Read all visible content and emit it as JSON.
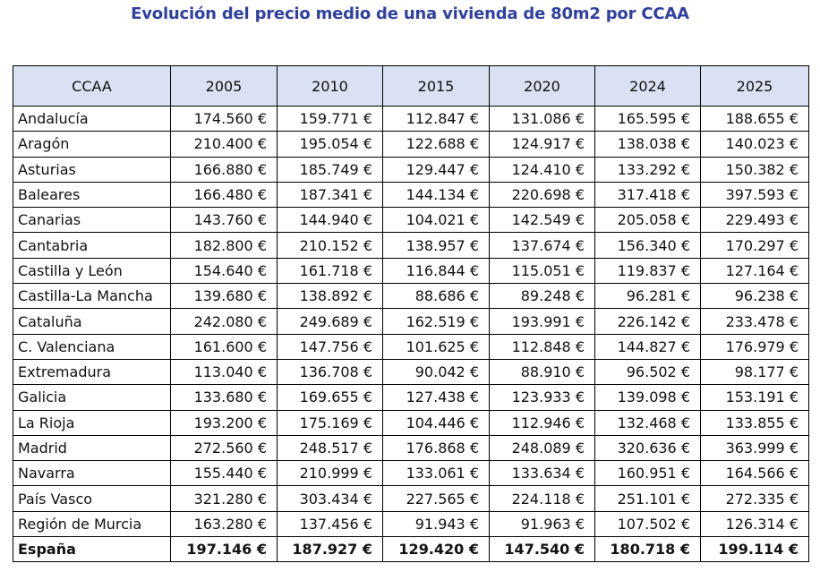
{
  "title": "Evolución del precio medio de una vivienda de 80m2 por CCAA",
  "colors": {
    "title": "#3040A0",
    "header_bg": "#D9E1F2",
    "border": "#000000"
  },
  "table": {
    "headers": [
      "CCAA",
      "2005",
      "2010",
      "2015",
      "2020",
      "2024",
      "2025"
    ],
    "rows": [
      [
        "Andalucía",
        "174.560 €",
        "159.771 €",
        "112.847 €",
        "131.086 €",
        "165.595 €",
        "188.655 €"
      ],
      [
        "Aragón",
        "210.400 €",
        "195.054 €",
        "122.688 €",
        "124.917 €",
        "138.038 €",
        "140.023 €"
      ],
      [
        "Asturias",
        "166.880 €",
        "185.749 €",
        "129.447 €",
        "124.410 €",
        "133.292 €",
        "150.382 €"
      ],
      [
        "Baleares",
        "166.480 €",
        "187.341 €",
        "144.134 €",
        "220.698 €",
        "317.418 €",
        "397.593 €"
      ],
      [
        "Canarias",
        "143.760 €",
        "144.940 €",
        "104.021 €",
        "142.549 €",
        "205.058 €",
        "229.493 €"
      ],
      [
        "Cantabria",
        "182.800 €",
        "210.152 €",
        "138.957 €",
        "137.674 €",
        "156.340 €",
        "170.297 €"
      ],
      [
        "Castilla y León",
        "154.640 €",
        "161.718 €",
        "116.844 €",
        "115.051 €",
        "119.837 €",
        "127.164 €"
      ],
      [
        "Castilla-La Mancha",
        "139.680 €",
        "138.892 €",
        "88.686 €",
        "89.248 €",
        "96.281 €",
        "96.238 €"
      ],
      [
        "Cataluña",
        "242.080 €",
        "249.689 €",
        "162.519 €",
        "193.991 €",
        "226.142 €",
        "233.478 €"
      ],
      [
        "C. Valenciana",
        "161.600 €",
        "147.756 €",
        "101.625 €",
        "112.848 €",
        "144.827 €",
        "176.979 €"
      ],
      [
        "Extremadura",
        "113.040 €",
        "136.708 €",
        "90.042 €",
        "88.910 €",
        "96.502 €",
        "98.177 €"
      ],
      [
        "Galicia",
        "133.680 €",
        "169.655 €",
        "127.438 €",
        "123.933 €",
        "139.098 €",
        "153.191 €"
      ],
      [
        "La Rioja",
        "193.200 €",
        "175.169 €",
        "104.446 €",
        "112.946 €",
        "132.468 €",
        "133.855 €"
      ],
      [
        "Madrid",
        "272.560 €",
        "248.517 €",
        "176.868 €",
        "248.089 €",
        "320.636 €",
        "363.999 €"
      ],
      [
        "Navarra",
        "155.440 €",
        "210.999 €",
        "133.061 €",
        "133.634 €",
        "160.951 €",
        "164.566 €"
      ],
      [
        "País Vasco",
        "321.280 €",
        "303.434 €",
        "227.565 €",
        "224.118 €",
        "251.101 €",
        "272.335 €"
      ],
      [
        "Región de Murcia",
        "163.280 €",
        "137.456 €",
        "91.943 €",
        "91.963 €",
        "107.502 €",
        "126.314 €"
      ]
    ],
    "total": [
      "España",
      "197.146 €",
      "187.927 €",
      "129.420 €",
      "147.540 €",
      "180.718 €",
      "199.114 €"
    ]
  }
}
